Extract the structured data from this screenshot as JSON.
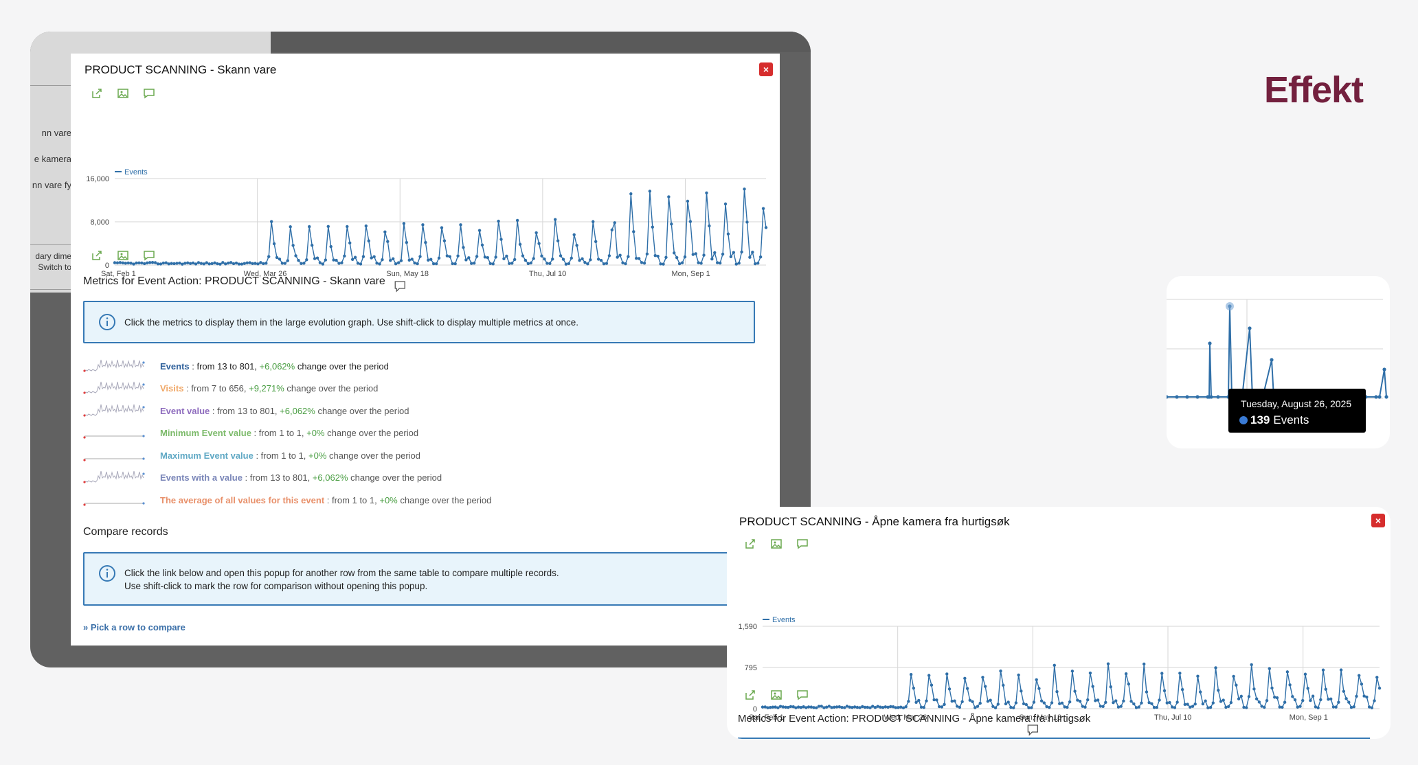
{
  "background_labels": [
    "nn vare",
    "e kamera",
    "nn vare fy",
    "dary dime",
    "Switch to"
  ],
  "modal1": {
    "title": "PRODUCT SCANNING - Skann vare",
    "close_label": "×",
    "section_title": "Metrics for Event Action: PRODUCT SCANNING - Skann vare",
    "info_text": "Click the metrics to display them in the large evolution graph. Use shift-click to display multiple metrics at once.",
    "metrics": [
      {
        "name": "Events",
        "rest": " : from 13 to 801, ",
        "change": "+6,062%",
        "suffix": " change over the period",
        "color": "#2d5f9a"
      },
      {
        "name": "Visits",
        "rest": " : from 7 to 656, ",
        "change": "+9,271%",
        "suffix": " change over the period",
        "color": "#f0a868"
      },
      {
        "name": "Event value",
        "rest": " : from 13 to 801, ",
        "change": "+6,062%",
        "suffix": " change over the period",
        "color": "#8d6bbd"
      },
      {
        "name": "Minimum Event value",
        "rest": " : from 1 to 1, ",
        "change": "+0%",
        "suffix": " change over the period",
        "color": "#7cba6a"
      },
      {
        "name": "Maximum Event value",
        "rest": " : from 1 to 1, ",
        "change": "+0%",
        "suffix": " change over the period",
        "color": "#5fa8c4"
      },
      {
        "name": "Events with a value",
        "rest": " : from 13 to 801, ",
        "change": "+6,062%",
        "suffix": " change over the period",
        "color": "#7a86b8"
      },
      {
        "name": "The average of all values for this event",
        "rest": " : from 1 to 1, ",
        "change": "+0%",
        "suffix": " change over the period",
        "color": "#e8906a"
      }
    ],
    "compare_title": "Compare records",
    "compare_text_1": "Click the link below and open this popup for another row from the same table to compare multiple records.",
    "compare_text_2": "Use shift-click to mark the row for comparison without opening this popup.",
    "pick_link": "» Pick a row to compare"
  },
  "brand": "Effekt",
  "tooltip": {
    "date": "Tuesday, August 26, 2025",
    "value": "139",
    "label": "Events"
  },
  "modal2": {
    "title": "PRODUCT SCANNING - Åpne kamera fra hurtigsøk",
    "close_label": "×",
    "section_title": "Metrics for Event Action: PRODUCT SCANNING - Åpne kamera fra hurtigsøk"
  },
  "chart_data": [
    {
      "type": "line",
      "title": "",
      "legend": [
        "Events"
      ],
      "y_ticks": [
        "16,000",
        "8,000",
        "0"
      ],
      "ylim": [
        0,
        16000
      ],
      "x_ticks": [
        "Sat, Feb 1",
        "Wed, Mar 26",
        "Sun, May 18",
        "Thu, Jul 10",
        "Mon, Sep 1"
      ],
      "x_range": [
        "2025-02-01",
        "2025-09-30"
      ],
      "description": "Daily events, Feb 1 – Sep 30 2025; near zero until late March, weekly peaks ~4,000–9,000 through summer, peaks up to ~15,000 from August",
      "series": [
        {
          "name": "Events",
          "color": "#2f6fa8"
        }
      ]
    },
    {
      "type": "line",
      "title": "",
      "legend": [
        "Events"
      ],
      "y_ticks": [
        "1,590",
        "795",
        "0"
      ],
      "ylim": [
        0,
        1590
      ],
      "x_ticks": [
        "Sat, Feb 1",
        "Wed, Mar 26",
        "Sun, May 18",
        "Thu, Jul 10",
        "Mon, Sep 1"
      ],
      "x_range": [
        "2025-02-01",
        "2025-09-30"
      ],
      "description": "Daily events, weekly peaks rising to ~1,590 in June",
      "series": [
        {
          "name": "Events",
          "color": "#2f6fa8"
        }
      ]
    }
  ]
}
